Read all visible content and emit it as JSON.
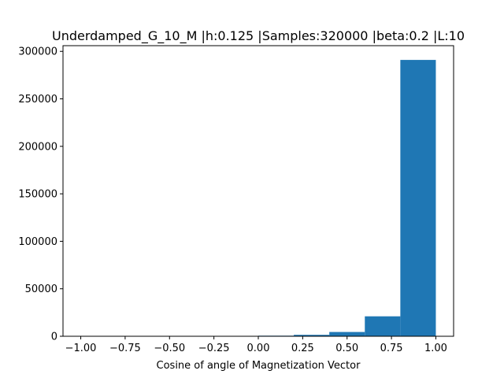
{
  "chart_data": {
    "type": "bar",
    "title": "Underdamped_G_10_M |h:0.125 |Samples:320000 |beta:0.2 |L:10",
    "xlabel": "Cosine of angle of Magnetization Vector",
    "ylabel": "",
    "bin_edges": [
      -1.0,
      -0.8,
      -0.6,
      -0.4,
      -0.2,
      0.0,
      0.2,
      0.4,
      0.6,
      0.8,
      1.0
    ],
    "values": [
      5,
      10,
      20,
      40,
      100,
      600,
      1500,
      4500,
      21000,
      291000
    ],
    "xlim": [
      -1.1,
      1.1
    ],
    "ylim": [
      0,
      306000
    ],
    "x_ticks": [
      {
        "value": -1.0,
        "label": "−1.00"
      },
      {
        "value": -0.75,
        "label": "−0.75"
      },
      {
        "value": -0.5,
        "label": "−0.50"
      },
      {
        "value": -0.25,
        "label": "−0.25"
      },
      {
        "value": 0.0,
        "label": "0.00"
      },
      {
        "value": 0.25,
        "label": "0.25"
      },
      {
        "value": 0.5,
        "label": "0.50"
      },
      {
        "value": 0.75,
        "label": "0.75"
      },
      {
        "value": 1.0,
        "label": "1.00"
      }
    ],
    "y_ticks": [
      {
        "value": 0,
        "label": "0"
      },
      {
        "value": 50000,
        "label": "50000"
      },
      {
        "value": 100000,
        "label": "100000"
      },
      {
        "value": 150000,
        "label": "150000"
      },
      {
        "value": 200000,
        "label": "200000"
      },
      {
        "value": 250000,
        "label": "250000"
      },
      {
        "value": 300000,
        "label": "300000"
      }
    ],
    "bar_color": "#1f77b4",
    "grid": false,
    "legend": "none"
  }
}
